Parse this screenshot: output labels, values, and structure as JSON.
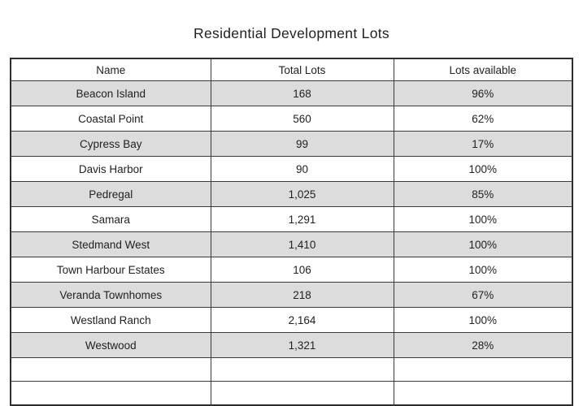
{
  "title": "Residential Development Lots",
  "table": {
    "columns": [
      "Name",
      "Total Lots",
      "Lots available"
    ],
    "rows": [
      [
        "Beacon Island",
        "168",
        "96%"
      ],
      [
        "Coastal Point",
        "560",
        "62%"
      ],
      [
        "Cypress Bay",
        "99",
        "17%"
      ],
      [
        "Davis Harbor",
        "90",
        "100%"
      ],
      [
        "Pedregal",
        "1,025",
        "85%"
      ],
      [
        "Samara",
        "1,291",
        "100%"
      ],
      [
        "Stedmand West",
        "1,410",
        "100%"
      ],
      [
        "Town Harbour Estates",
        "106",
        "100%"
      ],
      [
        "Veranda Townhomes",
        "218",
        "67%"
      ],
      [
        "Westland Ranch",
        "2,164",
        "100%"
      ],
      [
        "Westwood",
        "1,321",
        "28%"
      ]
    ],
    "empty_row_count": 2
  },
  "colors": {
    "row_shade": "#dcdcdc",
    "border": "#3a3a3a",
    "text": "#242122"
  }
}
